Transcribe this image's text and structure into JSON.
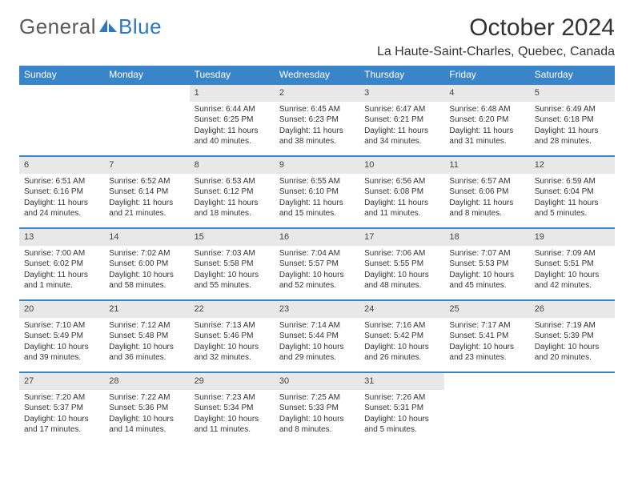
{
  "brand": {
    "part1": "General",
    "part2": "Blue"
  },
  "title": "October 2024",
  "location": "La Haute-Saint-Charles, Quebec, Canada",
  "colors": {
    "header_bg": "#3a85c9",
    "header_text": "#ffffff",
    "daynum_bg": "#e8e8e8",
    "row_border": "#3a85c9",
    "body_text": "#333333",
    "logo_gray": "#5a5a5a",
    "logo_blue": "#2f78bf",
    "page_bg": "#ffffff"
  },
  "dow": [
    "Sunday",
    "Monday",
    "Tuesday",
    "Wednesday",
    "Thursday",
    "Friday",
    "Saturday"
  ],
  "weeks": [
    [
      {
        "n": "",
        "sr": "",
        "ss": "",
        "dl": ""
      },
      {
        "n": "",
        "sr": "",
        "ss": "",
        "dl": ""
      },
      {
        "n": "1",
        "sr": "Sunrise: 6:44 AM",
        "ss": "Sunset: 6:25 PM",
        "dl": "Daylight: 11 hours and 40 minutes."
      },
      {
        "n": "2",
        "sr": "Sunrise: 6:45 AM",
        "ss": "Sunset: 6:23 PM",
        "dl": "Daylight: 11 hours and 38 minutes."
      },
      {
        "n": "3",
        "sr": "Sunrise: 6:47 AM",
        "ss": "Sunset: 6:21 PM",
        "dl": "Daylight: 11 hours and 34 minutes."
      },
      {
        "n": "4",
        "sr": "Sunrise: 6:48 AM",
        "ss": "Sunset: 6:20 PM",
        "dl": "Daylight: 11 hours and 31 minutes."
      },
      {
        "n": "5",
        "sr": "Sunrise: 6:49 AM",
        "ss": "Sunset: 6:18 PM",
        "dl": "Daylight: 11 hours and 28 minutes."
      }
    ],
    [
      {
        "n": "6",
        "sr": "Sunrise: 6:51 AM",
        "ss": "Sunset: 6:16 PM",
        "dl": "Daylight: 11 hours and 24 minutes."
      },
      {
        "n": "7",
        "sr": "Sunrise: 6:52 AM",
        "ss": "Sunset: 6:14 PM",
        "dl": "Daylight: 11 hours and 21 minutes."
      },
      {
        "n": "8",
        "sr": "Sunrise: 6:53 AM",
        "ss": "Sunset: 6:12 PM",
        "dl": "Daylight: 11 hours and 18 minutes."
      },
      {
        "n": "9",
        "sr": "Sunrise: 6:55 AM",
        "ss": "Sunset: 6:10 PM",
        "dl": "Daylight: 11 hours and 15 minutes."
      },
      {
        "n": "10",
        "sr": "Sunrise: 6:56 AM",
        "ss": "Sunset: 6:08 PM",
        "dl": "Daylight: 11 hours and 11 minutes."
      },
      {
        "n": "11",
        "sr": "Sunrise: 6:57 AM",
        "ss": "Sunset: 6:06 PM",
        "dl": "Daylight: 11 hours and 8 minutes."
      },
      {
        "n": "12",
        "sr": "Sunrise: 6:59 AM",
        "ss": "Sunset: 6:04 PM",
        "dl": "Daylight: 11 hours and 5 minutes."
      }
    ],
    [
      {
        "n": "13",
        "sr": "Sunrise: 7:00 AM",
        "ss": "Sunset: 6:02 PM",
        "dl": "Daylight: 11 hours and 1 minute."
      },
      {
        "n": "14",
        "sr": "Sunrise: 7:02 AM",
        "ss": "Sunset: 6:00 PM",
        "dl": "Daylight: 10 hours and 58 minutes."
      },
      {
        "n": "15",
        "sr": "Sunrise: 7:03 AM",
        "ss": "Sunset: 5:58 PM",
        "dl": "Daylight: 10 hours and 55 minutes."
      },
      {
        "n": "16",
        "sr": "Sunrise: 7:04 AM",
        "ss": "Sunset: 5:57 PM",
        "dl": "Daylight: 10 hours and 52 minutes."
      },
      {
        "n": "17",
        "sr": "Sunrise: 7:06 AM",
        "ss": "Sunset: 5:55 PM",
        "dl": "Daylight: 10 hours and 48 minutes."
      },
      {
        "n": "18",
        "sr": "Sunrise: 7:07 AM",
        "ss": "Sunset: 5:53 PM",
        "dl": "Daylight: 10 hours and 45 minutes."
      },
      {
        "n": "19",
        "sr": "Sunrise: 7:09 AM",
        "ss": "Sunset: 5:51 PM",
        "dl": "Daylight: 10 hours and 42 minutes."
      }
    ],
    [
      {
        "n": "20",
        "sr": "Sunrise: 7:10 AM",
        "ss": "Sunset: 5:49 PM",
        "dl": "Daylight: 10 hours and 39 minutes."
      },
      {
        "n": "21",
        "sr": "Sunrise: 7:12 AM",
        "ss": "Sunset: 5:48 PM",
        "dl": "Daylight: 10 hours and 36 minutes."
      },
      {
        "n": "22",
        "sr": "Sunrise: 7:13 AM",
        "ss": "Sunset: 5:46 PM",
        "dl": "Daylight: 10 hours and 32 minutes."
      },
      {
        "n": "23",
        "sr": "Sunrise: 7:14 AM",
        "ss": "Sunset: 5:44 PM",
        "dl": "Daylight: 10 hours and 29 minutes."
      },
      {
        "n": "24",
        "sr": "Sunrise: 7:16 AM",
        "ss": "Sunset: 5:42 PM",
        "dl": "Daylight: 10 hours and 26 minutes."
      },
      {
        "n": "25",
        "sr": "Sunrise: 7:17 AM",
        "ss": "Sunset: 5:41 PM",
        "dl": "Daylight: 10 hours and 23 minutes."
      },
      {
        "n": "26",
        "sr": "Sunrise: 7:19 AM",
        "ss": "Sunset: 5:39 PM",
        "dl": "Daylight: 10 hours and 20 minutes."
      }
    ],
    [
      {
        "n": "27",
        "sr": "Sunrise: 7:20 AM",
        "ss": "Sunset: 5:37 PM",
        "dl": "Daylight: 10 hours and 17 minutes."
      },
      {
        "n": "28",
        "sr": "Sunrise: 7:22 AM",
        "ss": "Sunset: 5:36 PM",
        "dl": "Daylight: 10 hours and 14 minutes."
      },
      {
        "n": "29",
        "sr": "Sunrise: 7:23 AM",
        "ss": "Sunset: 5:34 PM",
        "dl": "Daylight: 10 hours and 11 minutes."
      },
      {
        "n": "30",
        "sr": "Sunrise: 7:25 AM",
        "ss": "Sunset: 5:33 PM",
        "dl": "Daylight: 10 hours and 8 minutes."
      },
      {
        "n": "31",
        "sr": "Sunrise: 7:26 AM",
        "ss": "Sunset: 5:31 PM",
        "dl": "Daylight: 10 hours and 5 minutes."
      },
      {
        "n": "",
        "sr": "",
        "ss": "",
        "dl": ""
      },
      {
        "n": "",
        "sr": "",
        "ss": "",
        "dl": ""
      }
    ]
  ]
}
